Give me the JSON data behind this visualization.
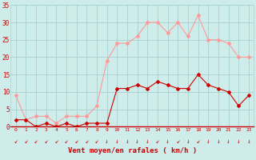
{
  "x": [
    0,
    1,
    2,
    3,
    4,
    5,
    6,
    7,
    8,
    9,
    10,
    11,
    12,
    13,
    14,
    15,
    16,
    17,
    18,
    19,
    20,
    21,
    22,
    23
  ],
  "vent_moyen": [
    2,
    2,
    0,
    1,
    0,
    1,
    0,
    1,
    1,
    1,
    11,
    11,
    12,
    11,
    13,
    12,
    11,
    11,
    15,
    12,
    11,
    10,
    6,
    9
  ],
  "rafales": [
    9,
    2,
    3,
    3,
    1,
    3,
    3,
    3,
    6,
    19,
    24,
    24,
    26,
    30,
    30,
    27,
    30,
    26,
    32,
    25,
    25,
    24,
    20,
    20
  ],
  "bg_color": "#ceecea",
  "grid_color": "#aad4d2",
  "line_color_moyen": "#cc0000",
  "line_color_rafales": "#ff9999",
  "xlabel": "Vent moyen/en rafales ( km/h )",
  "ylim": [
    0,
    35
  ],
  "yticks": [
    0,
    5,
    10,
    15,
    20,
    25,
    30,
    35
  ],
  "xlim": [
    -0.5,
    23.5
  ],
  "tick_color": "#cc0000",
  "arrows_0_8": [
    "↙",
    "↙",
    "↙",
    "↙",
    "↙",
    "↙",
    "↙",
    "↙",
    "↙"
  ],
  "arrows_9_23": [
    "↓",
    "↓",
    "↓",
    "↓",
    "↓",
    "↙",
    "↓",
    "↙",
    "↓",
    "↙",
    "↓",
    "↓",
    "↓",
    "↓",
    "↓"
  ]
}
